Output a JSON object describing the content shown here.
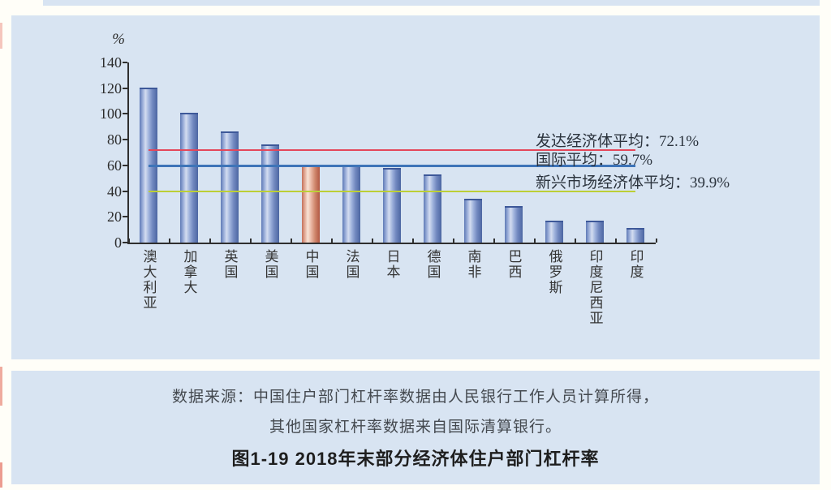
{
  "figure": {
    "source_line1": "数据来源：中国住户部门杠杆率数据由人民银行工作人员计算所得，",
    "source_line2": "其他国家杠杆率数据来自国际清算银行。",
    "title": "图1-19  2018年末部分经济体住户部门杠杆率"
  },
  "chart_data": {
    "type": "bar",
    "title": "2018年末部分经济体住户部门杠杆率",
    "ylabel": "%",
    "xlabel": "",
    "ylim": [
      0,
      140
    ],
    "yticks": [
      0,
      20,
      40,
      60,
      80,
      100,
      120,
      140
    ],
    "grid": false,
    "legend_position": "none",
    "categories": [
      "澳大利亚",
      "加拿大",
      "英国",
      "美国",
      "中国",
      "法国",
      "日本",
      "德国",
      "南非",
      "巴西",
      "俄罗斯",
      "印度尼西亚",
      "印度"
    ],
    "values": [
      120.3,
      100.7,
      86.7,
      76.1,
      60.4,
      60.0,
      58.1,
      52.9,
      33.8,
      28.3,
      17.3,
      17.2,
      11.1
    ],
    "highlight_index": 4,
    "highlight_category": "中国",
    "bar_color": "#5f7ab6",
    "highlight_color": "#c4705a",
    "reference_lines": [
      {
        "name": "developed-average",
        "label": "发达经济体平均：72.1%",
        "value": 72.1,
        "color": "#e4475a"
      },
      {
        "name": "international-average",
        "label": "国际平均：59.7%",
        "value": 59.7,
        "color": "#3e74b8"
      },
      {
        "name": "emerging-average",
        "label": "新兴市场经济体平均：39.9%",
        "value": 39.9,
        "color": "#bccf36"
      }
    ],
    "colors": {
      "panel_background": "#d8e4f2",
      "axis": "#2f2f2f",
      "text": "#333333"
    }
  }
}
